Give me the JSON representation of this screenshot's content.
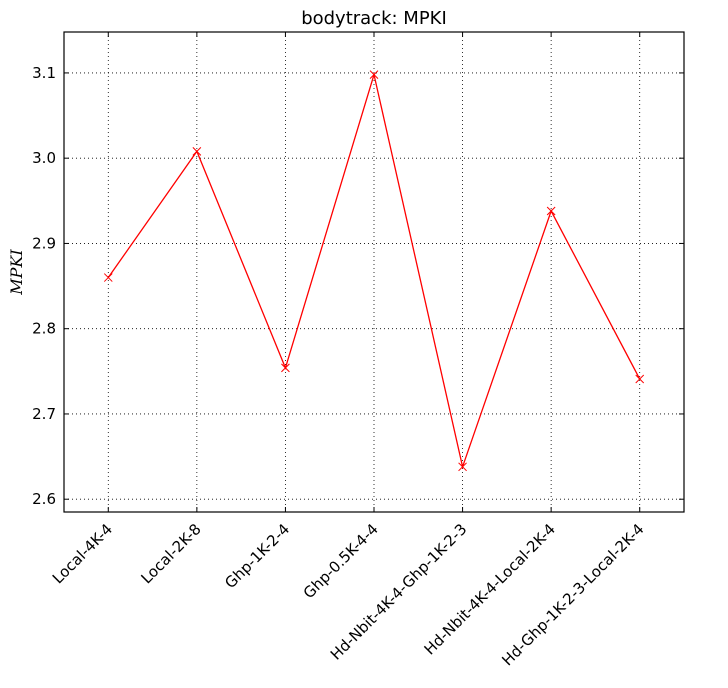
{
  "chart_data": {
    "type": "line",
    "title": "bodytrack: MPKI",
    "xlabel": "",
    "ylabel": "MPKI",
    "categories": [
      "Local-4K-4",
      "Local-2K-8",
      "Ghp-1K-2-4",
      "Ghp-0.5K-4-4",
      "Hd-Nbit-4K-4-Ghp-1K-2-3",
      "Hd-Nbit-4K-4-Local-2K-4",
      "Hd-Ghp-1K-2-3-Local-2K-4"
    ],
    "series": [
      {
        "values": [
          2.86,
          3.008,
          2.754,
          3.098,
          2.638,
          2.938,
          2.741
        ],
        "color": "#ff0000",
        "marker": "x"
      }
    ],
    "ylim": [
      2.585,
      3.148
    ],
    "yticks": [
      "2.6",
      "2.7",
      "2.8",
      "2.9",
      "3.0",
      "3.1"
    ],
    "ytick_values": [
      2.6,
      2.7,
      2.8,
      2.9,
      3.0,
      3.1
    ],
    "grid": true
  }
}
